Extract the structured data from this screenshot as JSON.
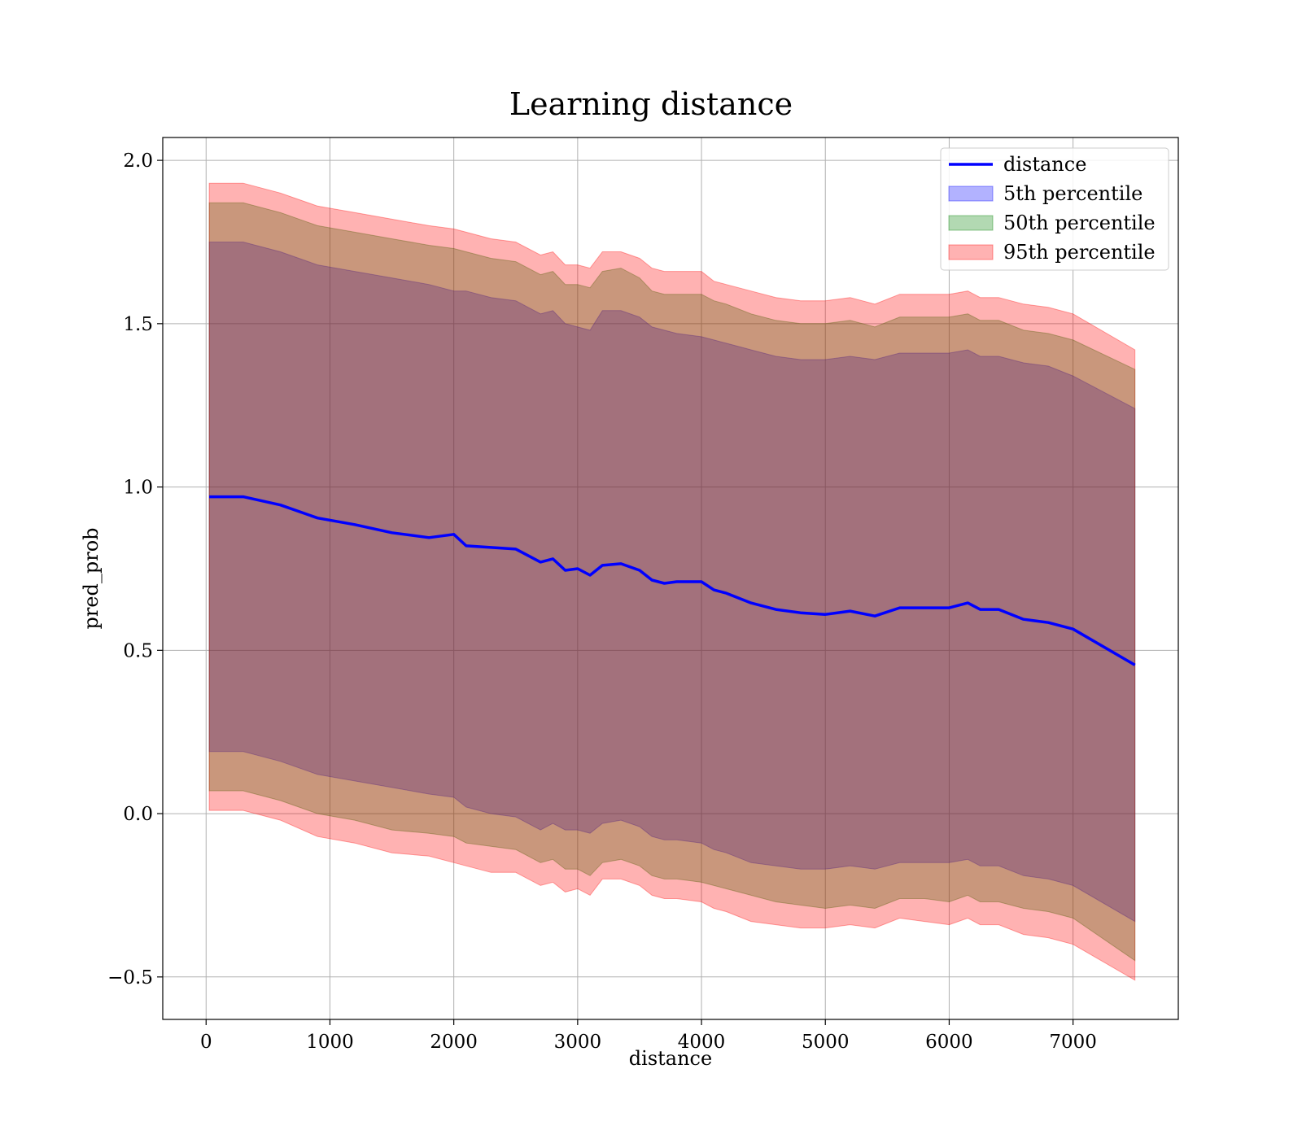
{
  "chart_data": {
    "type": "area",
    "title": "Learning distance",
    "xlabel": "distance",
    "ylabel": "pred_prob",
    "xlim": [
      -350,
      7850
    ],
    "ylim": [
      -0.63,
      2.07
    ],
    "xticks": [
      0,
      1000,
      2000,
      3000,
      4000,
      5000,
      6000,
      7000
    ],
    "xtick_labels": [
      "0",
      "1000",
      "2000",
      "3000",
      "4000",
      "5000",
      "6000",
      "7000"
    ],
    "yticks": [
      -0.5,
      0.0,
      0.5,
      1.0,
      1.5,
      2.0
    ],
    "ytick_labels": [
      "−0.5",
      "0.0",
      "0.5",
      "1.0",
      "1.5",
      "2.0"
    ],
    "grid": true,
    "legend_position": "top-right",
    "legend": [
      "distance",
      "5th percentile",
      "50th percentile",
      "95th percentile"
    ],
    "x": [
      25,
      300,
      600,
      900,
      1200,
      1500,
      1800,
      2000,
      2100,
      2300,
      2500,
      2700,
      2800,
      2900,
      3000,
      3100,
      3200,
      3350,
      3500,
      3600,
      3700,
      3800,
      4000,
      4100,
      4200,
      4400,
      4600,
      4800,
      5000,
      5200,
      5400,
      5600,
      5800,
      6000,
      6150,
      6250,
      6400,
      6600,
      6800,
      7000,
      7500
    ],
    "series": [
      {
        "name": "distance",
        "type": "line",
        "color": "#0000ff",
        "values": [
          0.97,
          0.97,
          0.945,
          0.905,
          0.885,
          0.86,
          0.845,
          0.855,
          0.82,
          0.815,
          0.81,
          0.77,
          0.78,
          0.745,
          0.75,
          0.73,
          0.76,
          0.765,
          0.745,
          0.715,
          0.705,
          0.71,
          0.71,
          0.685,
          0.675,
          0.645,
          0.625,
          0.615,
          0.61,
          0.62,
          0.605,
          0.63,
          0.63,
          0.63,
          0.645,
          0.625,
          0.625,
          0.595,
          0.585,
          0.565,
          0.455
        ]
      },
      {
        "name": "5th percentile",
        "type": "band",
        "color": "#0000ff",
        "upper": [
          1.75,
          1.75,
          1.72,
          1.68,
          1.66,
          1.64,
          1.62,
          1.6,
          1.6,
          1.58,
          1.57,
          1.53,
          1.54,
          1.5,
          1.49,
          1.48,
          1.54,
          1.54,
          1.52,
          1.49,
          1.48,
          1.47,
          1.46,
          1.45,
          1.44,
          1.42,
          1.4,
          1.39,
          1.39,
          1.4,
          1.39,
          1.41,
          1.41,
          1.41,
          1.42,
          1.4,
          1.4,
          1.38,
          1.37,
          1.34,
          1.24
        ],
        "lower": [
          0.19,
          0.19,
          0.16,
          0.12,
          0.1,
          0.08,
          0.06,
          0.05,
          0.02,
          0.0,
          -0.01,
          -0.05,
          -0.03,
          -0.05,
          -0.05,
          -0.06,
          -0.03,
          -0.02,
          -0.04,
          -0.07,
          -0.08,
          -0.08,
          -0.09,
          -0.11,
          -0.12,
          -0.15,
          -0.16,
          -0.17,
          -0.17,
          -0.16,
          -0.17,
          -0.15,
          -0.15,
          -0.15,
          -0.14,
          -0.16,
          -0.16,
          -0.19,
          -0.2,
          -0.22,
          -0.33
        ]
      },
      {
        "name": "50th percentile",
        "type": "band",
        "color": "#008000",
        "upper": [
          1.87,
          1.87,
          1.84,
          1.8,
          1.78,
          1.76,
          1.74,
          1.73,
          1.72,
          1.7,
          1.69,
          1.65,
          1.66,
          1.62,
          1.62,
          1.61,
          1.66,
          1.67,
          1.64,
          1.6,
          1.59,
          1.59,
          1.59,
          1.57,
          1.56,
          1.53,
          1.51,
          1.5,
          1.5,
          1.51,
          1.49,
          1.52,
          1.52,
          1.52,
          1.53,
          1.51,
          1.51,
          1.48,
          1.47,
          1.45,
          1.36
        ],
        "lower": [
          0.07,
          0.07,
          0.04,
          0.0,
          -0.02,
          -0.05,
          -0.06,
          -0.07,
          -0.09,
          -0.1,
          -0.11,
          -0.15,
          -0.14,
          -0.17,
          -0.17,
          -0.19,
          -0.15,
          -0.14,
          -0.16,
          -0.19,
          -0.2,
          -0.2,
          -0.21,
          -0.22,
          -0.23,
          -0.25,
          -0.27,
          -0.28,
          -0.29,
          -0.28,
          -0.29,
          -0.26,
          -0.26,
          -0.27,
          -0.25,
          -0.27,
          -0.27,
          -0.29,
          -0.3,
          -0.32,
          -0.45
        ]
      },
      {
        "name": "95th percentile",
        "type": "band",
        "color": "#ff0000",
        "upper": [
          1.93,
          1.93,
          1.9,
          1.86,
          1.84,
          1.82,
          1.8,
          1.79,
          1.78,
          1.76,
          1.75,
          1.71,
          1.72,
          1.68,
          1.68,
          1.67,
          1.72,
          1.72,
          1.7,
          1.67,
          1.66,
          1.66,
          1.66,
          1.63,
          1.62,
          1.6,
          1.58,
          1.57,
          1.57,
          1.58,
          1.56,
          1.59,
          1.59,
          1.59,
          1.6,
          1.58,
          1.58,
          1.56,
          1.55,
          1.53,
          1.42
        ],
        "lower": [
          0.01,
          0.01,
          -0.02,
          -0.07,
          -0.09,
          -0.12,
          -0.13,
          -0.15,
          -0.16,
          -0.18,
          -0.18,
          -0.22,
          -0.21,
          -0.24,
          -0.23,
          -0.25,
          -0.2,
          -0.2,
          -0.22,
          -0.25,
          -0.26,
          -0.26,
          -0.27,
          -0.29,
          -0.3,
          -0.33,
          -0.34,
          -0.35,
          -0.35,
          -0.34,
          -0.35,
          -0.32,
          -0.33,
          -0.34,
          -0.32,
          -0.34,
          -0.34,
          -0.37,
          -0.38,
          -0.4,
          -0.51
        ]
      }
    ]
  }
}
